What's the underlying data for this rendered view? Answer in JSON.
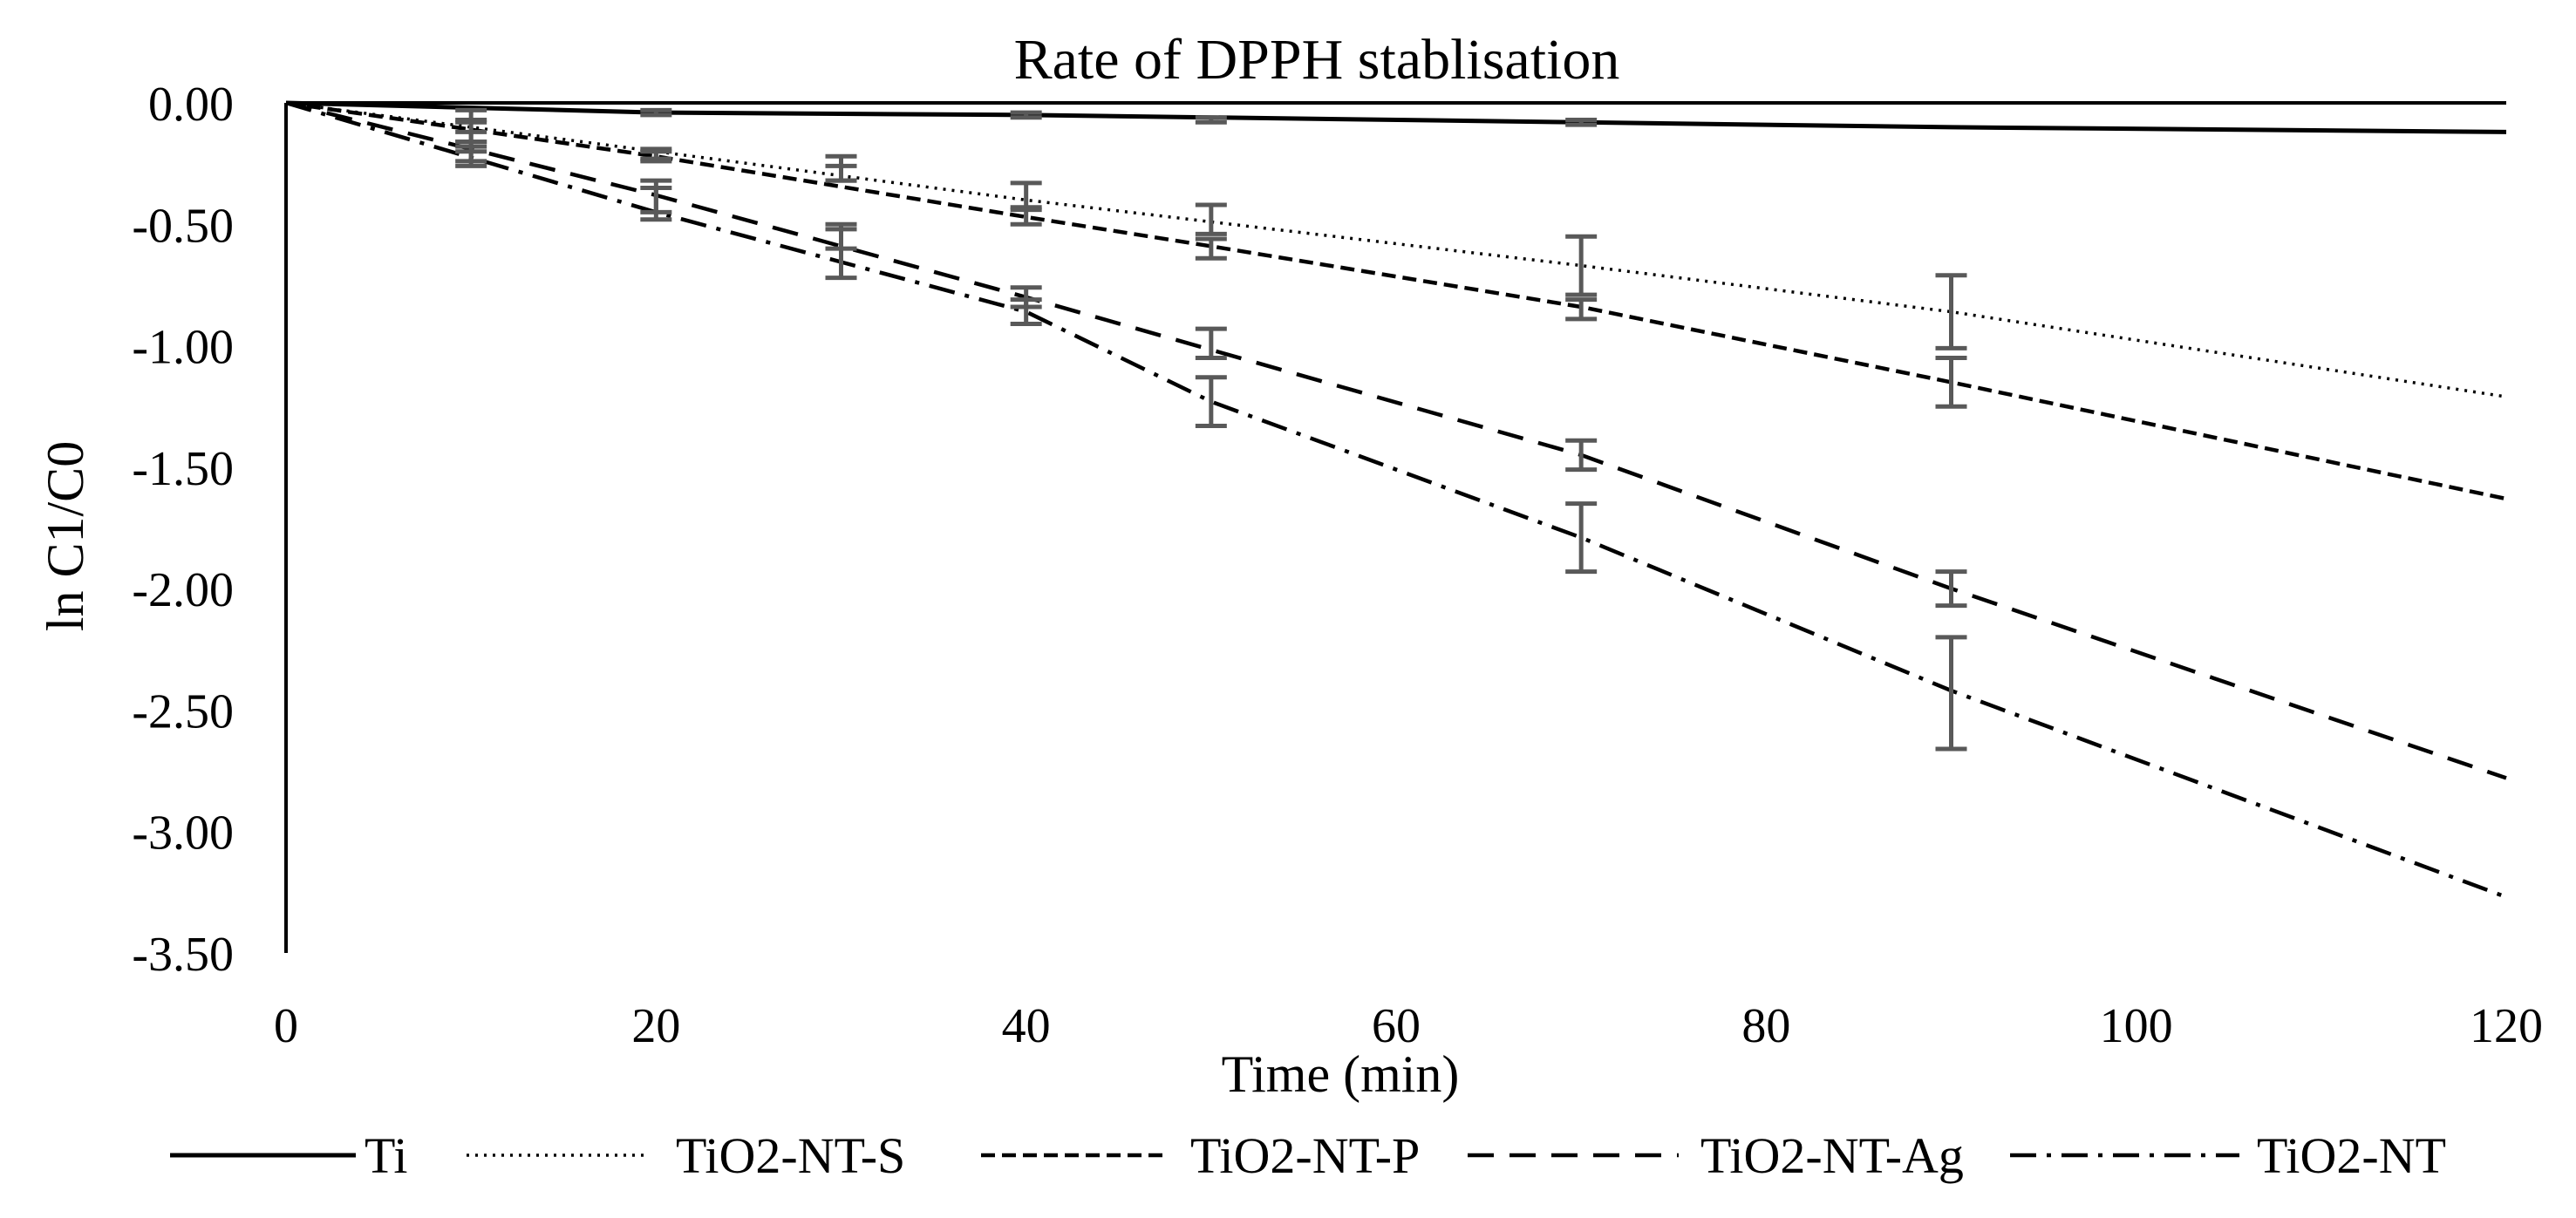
{
  "colors": {
    "background": "#ffffff",
    "series_line": "#000000",
    "error_bar": "#595959",
    "axis": "#000000"
  },
  "chart_data": {
    "type": "line",
    "title": "Rate of DPPH stablisation",
    "xlabel": "Time (min)",
    "ylabel": "ln C1/C0",
    "xlim": [
      0,
      120
    ],
    "ylim": [
      -3.5,
      0
    ],
    "x_ticks": [
      0,
      20,
      40,
      60,
      80,
      100,
      120
    ],
    "x_tick_labels": [
      "0",
      "20",
      "40",
      "60",
      "80",
      "100",
      "120"
    ],
    "y_ticks": [
      0,
      -0.5,
      -1,
      -1.5,
      -2,
      -2.5,
      -3,
      -3.5
    ],
    "y_tick_labels": [
      "0.00",
      "-0.50",
      "-1.00",
      "-1.50",
      "-2.00",
      "-2.50",
      "-3.00",
      "-3.50"
    ],
    "grid": false,
    "legend_position": "bottom",
    "series": [
      {
        "name": "Ti",
        "dash": "solid",
        "x": [
          0,
          20,
          40,
          70,
          90,
          120
        ],
        "y": [
          0,
          -0.04,
          -0.05,
          -0.08,
          -0.1,
          -0.12
        ],
        "markers": [
          {
            "x": 10,
            "y": -0.05,
            "err": 0.02
          },
          {
            "x": 20,
            "y": -0.04,
            "err": 0.01
          },
          {
            "x": 40,
            "y": -0.05,
            "err": 0.01
          },
          {
            "x": 50,
            "y": -0.07,
            "err": 0.01
          },
          {
            "x": 70,
            "y": -0.08,
            "err": 0.01
          }
        ]
      },
      {
        "name": "TiO2-NT-S",
        "dash": "dotted",
        "x": [
          0,
          20,
          40,
          70,
          90,
          120
        ],
        "y": [
          0,
          -0.2,
          -0.4,
          -0.67,
          -0.86,
          -1.21
        ],
        "markers": [
          {
            "x": 10,
            "y": -0.12,
            "err": 0.04
          },
          {
            "x": 20,
            "y": -0.21,
            "err": 0.02
          },
          {
            "x": 30,
            "y": -0.27,
            "err": 0.05
          },
          {
            "x": 40,
            "y": -0.38,
            "err": 0.05
          },
          {
            "x": 50,
            "y": -0.48,
            "err": 0.06
          },
          {
            "x": 70,
            "y": -0.67,
            "err": 0.12
          },
          {
            "x": 90,
            "y": -0.86,
            "err": 0.15
          }
        ]
      },
      {
        "name": "TiO2-NT-P",
        "dash": "short-dash",
        "x": [
          0,
          20,
          40,
          50,
          70,
          90,
          120
        ],
        "y": [
          0,
          -0.22,
          -0.47,
          -0.59,
          -0.84,
          -1.15,
          -1.63
        ],
        "markers": [
          {
            "x": 10,
            "y": -0.15,
            "err": 0.03
          },
          {
            "x": 20,
            "y": -0.22,
            "err": 0.02
          },
          {
            "x": 30,
            "y": -0.29,
            "err": 0.03
          },
          {
            "x": 40,
            "y": -0.47,
            "err": 0.03
          },
          {
            "x": 50,
            "y": -0.6,
            "err": 0.04
          },
          {
            "x": 70,
            "y": -0.85,
            "err": 0.04
          },
          {
            "x": 90,
            "y": -1.15,
            "err": 0.1
          }
        ]
      },
      {
        "name": "TiO2-NT-Ag",
        "dash": "long-dash",
        "x": [
          0,
          20,
          40,
          70,
          90,
          120
        ],
        "y": [
          0,
          -0.38,
          -0.8,
          -1.45,
          -2.0,
          -2.78
        ],
        "markers": [
          {
            "x": 10,
            "y": -0.2,
            "err": 0.04
          },
          {
            "x": 20,
            "y": -0.4,
            "err": 0.08
          },
          {
            "x": 30,
            "y": -0.55,
            "err": 0.05
          },
          {
            "x": 40,
            "y": -0.8,
            "err": 0.04
          },
          {
            "x": 50,
            "y": -0.99,
            "err": 0.06
          },
          {
            "x": 70,
            "y": -1.45,
            "err": 0.06
          },
          {
            "x": 90,
            "y": -2.0,
            "err": 0.07
          }
        ]
      },
      {
        "name": "TiO2-NT",
        "dash": "dash-dot",
        "x": [
          0,
          20,
          40,
          50,
          70,
          90,
          120
        ],
        "y": [
          0,
          -0.45,
          -0.86,
          -1.23,
          -1.79,
          -2.42,
          -3.27
        ],
        "markers": [
          {
            "x": 10,
            "y": -0.23,
            "err": 0.03
          },
          {
            "x": 20,
            "y": -0.4,
            "err": 0.05
          },
          {
            "x": 30,
            "y": -0.62,
            "err": 0.1
          },
          {
            "x": 40,
            "y": -0.86,
            "err": 0.05
          },
          {
            "x": 50,
            "y": -1.23,
            "err": 0.1
          },
          {
            "x": 70,
            "y": -1.79,
            "err": 0.14
          },
          {
            "x": 90,
            "y": -2.43,
            "err": 0.23
          }
        ]
      }
    ]
  }
}
